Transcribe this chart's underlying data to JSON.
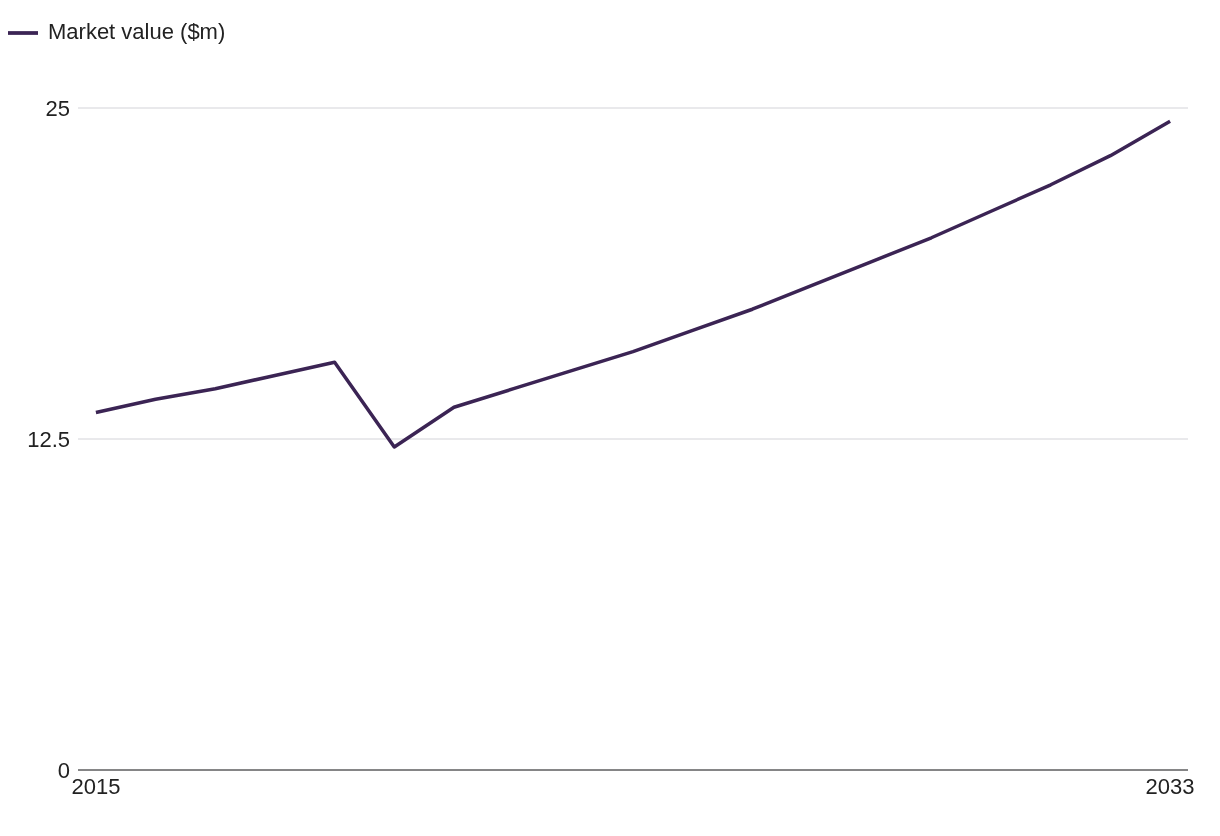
{
  "chart_data": {
    "type": "line",
    "x": [
      2015,
      2016,
      2017,
      2018,
      2019,
      2020,
      2021,
      2022,
      2023,
      2024,
      2025,
      2026,
      2027,
      2028,
      2029,
      2030,
      2031,
      2032,
      2033
    ],
    "series": [
      {
        "name": "Market value ($m)",
        "color": "#3b2454",
        "values": [
          13.5,
          14.0,
          14.4,
          14.9,
          15.4,
          12.2,
          13.7,
          14.4,
          15.1,
          15.8,
          16.6,
          17.4,
          18.3,
          19.2,
          20.1,
          21.1,
          22.1,
          23.2,
          24.5
        ]
      }
    ],
    "xlim": [
      2014.7,
      2033.3
    ],
    "xticks": [
      2015,
      2033
    ],
    "ylim": [
      0,
      25
    ],
    "yticks": [
      0,
      12.5,
      25
    ],
    "grid": "y",
    "legend": "top left",
    "marker": "none",
    "line_style": "solid"
  }
}
